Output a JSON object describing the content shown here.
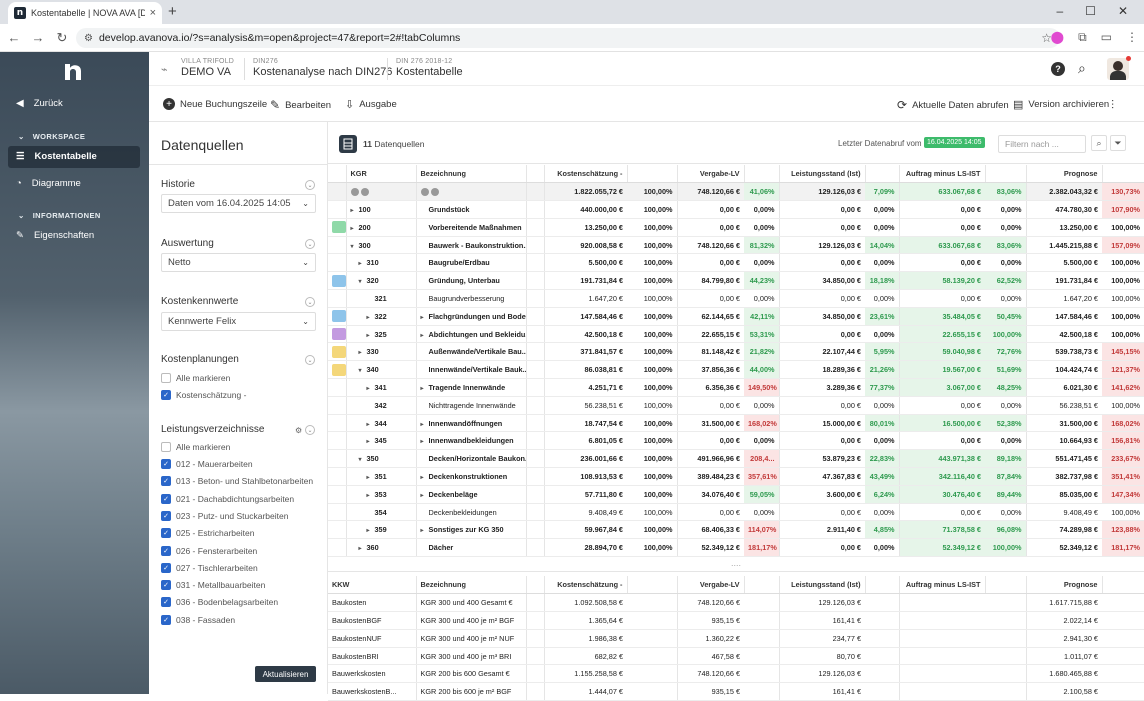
{
  "browser": {
    "tab_title": "Kostentabelle | NOVA AVA [DE",
    "url": "develop.avanova.io/?s=analysis&m=open&project=47&report=2#!tabColumns"
  },
  "sidebar": {
    "back": "Zurück",
    "section_workspace": "WORKSPACE",
    "item_kostentabelle": "Kostentabelle",
    "item_diagramme": "Diagramme",
    "section_info": "INFORMATIONEN",
    "item_eigenschaften": "Eigenschaften"
  },
  "header": {
    "project_small": "VILLA TRIFOLD",
    "project": "DEMO VA",
    "analysis_small": "DIN276",
    "analysis": "Kostenanalyse nach DIN276",
    "report_small": "DIN 276 2018-12",
    "report": "Kostentabelle"
  },
  "toolbar": {
    "new_entry": "Neue Buchungszeile",
    "edit": "Bearbeiten",
    "output": "Ausgabe",
    "refresh": "Aktuelle Daten abrufen",
    "archive": "Version archivieren"
  },
  "left_panel": {
    "title": "Datenquellen",
    "historie_label": "Historie",
    "historie_value": "Daten vom 16.04.2025 14:05",
    "auswertung_label": "Auswertung",
    "auswertung_value": "Netto",
    "kennwerte_label": "Kostenkennwerte",
    "kennwerte_value": "Kennwerte Felix",
    "planungen_label": "Kostenplanungen",
    "alle_markieren": "Alle markieren",
    "kostenschaetzung": "Kostenschätzung -",
    "lv_label": "Leistungsverzeichnisse",
    "lv_alle": "Alle markieren",
    "lv_items": [
      "012 - Mauerarbeiten",
      "013 - Beton- und Stahlbetonarbeiten",
      "021 - Dachabdichtungsarbeiten",
      "023 - Putz- und Stuckarbeiten",
      "025 - Estricharbeiten",
      "026 - Fensterarbeiten",
      "027 - Tischlerarbeiten",
      "031 - Metallbauarbeiten",
      "036 - Bodenbelagsarbeiten",
      "038 - Fassaden"
    ],
    "update_button": "Aktualisieren"
  },
  "main": {
    "ds_count": "11",
    "ds_label": "Datenquellen",
    "abruf_label": "Letzter Datenabruf vom",
    "abruf_date": "16.04.2025 14:05",
    "filter_placeholder": "Filtern nach ...",
    "more": "....",
    "columns": [
      "KGR",
      "Bezeichnung",
      "Kostenschätzung -",
      "Vergabe-LV",
      "Leistungsstand (Ist)",
      "Auftrag minus LS-IST",
      "Prognose"
    ],
    "rows": [
      {
        "sw": "",
        "ind": 0,
        "tw": "",
        "kgr": "",
        "bez": "",
        "ks": "1.822.055,72 €",
        "ksp": "100,00%",
        "vg": "748.120,66 €",
        "vgp": "41,06%",
        "vgc": "g",
        "ls": "129.126,03 €",
        "lsp": "7,09%",
        "lsc": "g",
        "am": "633.067,68 €",
        "amc": "g",
        "amp": "83,06%",
        "ampc": "g",
        "pr": "2.382.043,32 €",
        "prp": "130,73%",
        "prc": "p",
        "total": true
      },
      {
        "sw": "",
        "ind": 0,
        "tw": "▸",
        "kgr": "100",
        "bez": "Grundstück",
        "ks": "440.000,00 €",
        "ksp": "100,00%",
        "vg": "0,00 €",
        "vgp": "0,00%",
        "vgc": "",
        "ls": "0,00 €",
        "lsp": "0,00%",
        "lsc": "",
        "am": "0,00 €",
        "amc": "",
        "amp": "0,00%",
        "ampc": "",
        "pr": "474.780,30 €",
        "prp": "107,90%",
        "prc": "p"
      },
      {
        "sw": "#8fd9a8",
        "ind": 0,
        "tw": "▸",
        "kgr": "200",
        "bez": "Vorbereitende Maßnahmen",
        "ks": "13.250,00 €",
        "ksp": "100,00%",
        "vg": "0,00 €",
        "vgp": "0,00%",
        "vgc": "",
        "ls": "0,00 €",
        "lsp": "0,00%",
        "lsc": "",
        "am": "0,00 €",
        "amc": "",
        "amp": "0,00%",
        "ampc": "",
        "pr": "13.250,00 €",
        "prp": "100,00%",
        "prc": ""
      },
      {
        "sw": "",
        "ind": 0,
        "tw": "▾",
        "kgr": "300",
        "bez": "Bauwerk - Baukonstruktion...",
        "ks": "920.008,58 €",
        "ksp": "100,00%",
        "vg": "748.120,66 €",
        "vgp": "81,32%",
        "vgc": "g",
        "ls": "129.126,03 €",
        "lsp": "14,04%",
        "lsc": "g",
        "am": "633.067,68 €",
        "amc": "g",
        "amp": "83,06%",
        "ampc": "g",
        "pr": "1.445.215,88 €",
        "prp": "157,09%",
        "prc": "p"
      },
      {
        "sw": "",
        "ind": 1,
        "tw": "▸",
        "kgr": "310",
        "bez": "Baugrube/Erdbau",
        "ks": "5.500,00 €",
        "ksp": "100,00%",
        "vg": "0,00 €",
        "vgp": "0,00%",
        "vgc": "",
        "ls": "0,00 €",
        "lsp": "0,00%",
        "lsc": "",
        "am": "0,00 €",
        "amc": "",
        "amp": "0,00%",
        "ampc": "",
        "pr": "5.500,00 €",
        "prp": "100,00%",
        "prc": ""
      },
      {
        "sw": "#8ec4ea",
        "ind": 1,
        "tw": "▾",
        "kgr": "320",
        "bez": "Gründung, Unterbau",
        "ks": "191.731,84 €",
        "ksp": "100,00%",
        "vg": "84.799,80 €",
        "vgp": "44,23%",
        "vgc": "g",
        "ls": "34.850,00 €",
        "lsp": "18,18%",
        "lsc": "g",
        "am": "58.139,20 €",
        "amc": "g",
        "amp": "62,52%",
        "ampc": "g",
        "pr": "191.731,84 €",
        "prp": "100,00%",
        "prc": ""
      },
      {
        "sw": "",
        "ind": 2,
        "tw": "",
        "kgr": "321",
        "bez": "Baugrundverbesserung",
        "ks": "1.647,20 €",
        "ksp": "100,00%",
        "vg": "0,00 €",
        "vgp": "0,00%",
        "vgc": "",
        "ls": "0,00 €",
        "lsp": "0,00%",
        "lsc": "",
        "am": "0,00 €",
        "amc": "",
        "amp": "0,00%",
        "ampc": "",
        "pr": "1.647,20 €",
        "prp": "100,00%",
        "prc": "",
        "light": true
      },
      {
        "sw": "#8ec4ea",
        "ind": 2,
        "tw": "▸",
        "kgr": "322",
        "bez": "Flachgründungen und Bode...",
        "ks": "147.584,46 €",
        "ksp": "100,00%",
        "vg": "62.144,65 €",
        "vgp": "42,11%",
        "vgc": "g",
        "ls": "34.850,00 €",
        "lsp": "23,61%",
        "lsc": "g",
        "am": "35.484,05 €",
        "amc": "g",
        "amp": "50,45%",
        "ampc": "g",
        "pr": "147.584,46 €",
        "prp": "100,00%",
        "prc": ""
      },
      {
        "sw": "#c39ae0",
        "ind": 2,
        "tw": "▸",
        "kgr": "325",
        "bez": "Abdichtungen und Bekleidu...",
        "ks": "42.500,18 €",
        "ksp": "100,00%",
        "vg": "22.655,15 €",
        "vgp": "53,31%",
        "vgc": "g",
        "ls": "0,00 €",
        "lsp": "0,00%",
        "lsc": "",
        "am": "22.655,15 €",
        "amc": "g",
        "amp": "100,00%",
        "ampc": "g",
        "pr": "42.500,18 €",
        "prp": "100,00%",
        "prc": ""
      },
      {
        "sw": "#f4d77a",
        "ind": 1,
        "tw": "▸",
        "kgr": "330",
        "bez": "Außenwände/Vertikale Bau...",
        "ks": "371.841,57 €",
        "ksp": "100,00%",
        "vg": "81.148,42 €",
        "vgp": "21,82%",
        "vgc": "g",
        "ls": "22.107,44 €",
        "lsp": "5,95%",
        "lsc": "g",
        "am": "59.040,98 €",
        "amc": "g",
        "amp": "72,76%",
        "ampc": "g",
        "pr": "539.738,73 €",
        "prp": "145,15%",
        "prc": "p"
      },
      {
        "sw": "#f4d77a",
        "ind": 1,
        "tw": "▾",
        "kgr": "340",
        "bez": "Innenwände/Vertikale Bauk...",
        "ks": "86.038,81 €",
        "ksp": "100,00%",
        "vg": "37.856,36 €",
        "vgp": "44,00%",
        "vgc": "g",
        "ls": "18.289,36 €",
        "lsp": "21,26%",
        "lsc": "g",
        "am": "19.567,00 €",
        "amc": "g",
        "amp": "51,69%",
        "ampc": "g",
        "pr": "104.424,74 €",
        "prp": "121,37%",
        "prc": "p"
      },
      {
        "sw": "",
        "ind": 2,
        "tw": "▸",
        "kgr": "341",
        "bez": "Tragende Innenwände",
        "ks": "4.251,71 €",
        "ksp": "100,00%",
        "vg": "6.356,36 €",
        "vgp": "149,50%",
        "vgc": "p",
        "ls": "3.289,36 €",
        "lsp": "77,37%",
        "lsc": "g",
        "am": "3.067,00 €",
        "amc": "g",
        "amp": "48,25%",
        "ampc": "g",
        "pr": "6.021,30 €",
        "prp": "141,62%",
        "prc": "p"
      },
      {
        "sw": "",
        "ind": 2,
        "tw": "",
        "kgr": "342",
        "bez": "Nichttragende Innenwände",
        "ks": "56.238,51 €",
        "ksp": "100,00%",
        "vg": "0,00 €",
        "vgp": "0,00%",
        "vgc": "",
        "ls": "0,00 €",
        "lsp": "0,00%",
        "lsc": "",
        "am": "0,00 €",
        "amc": "",
        "amp": "0,00%",
        "ampc": "",
        "pr": "56.238,51 €",
        "prp": "100,00%",
        "prc": "",
        "light": true
      },
      {
        "sw": "",
        "ind": 2,
        "tw": "▸",
        "kgr": "344",
        "bez": "Innenwandöffnungen",
        "ks": "18.747,54 €",
        "ksp": "100,00%",
        "vg": "31.500,00 €",
        "vgp": "168,02%",
        "vgc": "p",
        "ls": "15.000,00 €",
        "lsp": "80,01%",
        "lsc": "g",
        "am": "16.500,00 €",
        "amc": "g",
        "amp": "52,38%",
        "ampc": "g",
        "pr": "31.500,00 €",
        "prp": "168,02%",
        "prc": "p"
      },
      {
        "sw": "",
        "ind": 2,
        "tw": "▸",
        "kgr": "345",
        "bez": "Innenwandbekleidungen",
        "ks": "6.801,05 €",
        "ksp": "100,00%",
        "vg": "0,00 €",
        "vgp": "0,00%",
        "vgc": "",
        "ls": "0,00 €",
        "lsp": "0,00%",
        "lsc": "",
        "am": "0,00 €",
        "amc": "",
        "amp": "0,00%",
        "ampc": "",
        "pr": "10.664,93 €",
        "prp": "156,81%",
        "prc": "p"
      },
      {
        "sw": "",
        "ind": 1,
        "tw": "▾",
        "kgr": "350",
        "bez": "Decken/Horizontale Baukon...",
        "ks": "236.001,66 €",
        "ksp": "100,00%",
        "vg": "491.966,96 €",
        "vgp": "208,4...",
        "vgc": "p",
        "ls": "53.879,23 €",
        "lsp": "22,83%",
        "lsc": "g",
        "am": "443.971,38 €",
        "amc": "g",
        "amp": "89,18%",
        "ampc": "g",
        "pr": "551.471,45 €",
        "prp": "233,67%",
        "prc": "p"
      },
      {
        "sw": "",
        "ind": 2,
        "tw": "▸",
        "kgr": "351",
        "bez": "Deckenkonstruktionen",
        "ks": "108.913,53 €",
        "ksp": "100,00%",
        "vg": "389.484,23 €",
        "vgp": "357,61%",
        "vgc": "p",
        "ls": "47.367,83 €",
        "lsp": "43,49%",
        "lsc": "g",
        "am": "342.116,40 €",
        "amc": "g",
        "amp": "87,84%",
        "ampc": "g",
        "pr": "382.737,98 €",
        "prp": "351,41%",
        "prc": "p"
      },
      {
        "sw": "",
        "ind": 2,
        "tw": "▸",
        "kgr": "353",
        "bez": "Deckenbeläge",
        "ks": "57.711,80 €",
        "ksp": "100,00%",
        "vg": "34.076,40 €",
        "vgp": "59,05%",
        "vgc": "g",
        "ls": "3.600,00 €",
        "lsp": "6,24%",
        "lsc": "g",
        "am": "30.476,40 €",
        "amc": "g",
        "amp": "89,44%",
        "ampc": "g",
        "pr": "85.035,00 €",
        "prp": "147,34%",
        "prc": "p"
      },
      {
        "sw": "",
        "ind": 2,
        "tw": "",
        "kgr": "354",
        "bez": "Deckenbekleidungen",
        "ks": "9.408,49 €",
        "ksp": "100,00%",
        "vg": "0,00 €",
        "vgp": "0,00%",
        "vgc": "",
        "ls": "0,00 €",
        "lsp": "0,00%",
        "lsc": "",
        "am": "0,00 €",
        "amc": "",
        "amp": "0,00%",
        "ampc": "",
        "pr": "9.408,49 €",
        "prp": "100,00%",
        "prc": "",
        "light": true
      },
      {
        "sw": "",
        "ind": 2,
        "tw": "▸",
        "kgr": "359",
        "bez": "Sonstiges zur KG 350",
        "ks": "59.967,84 €",
        "ksp": "100,00%",
        "vg": "68.406,33 €",
        "vgp": "114,07%",
        "vgc": "p",
        "ls": "2.911,40 €",
        "lsp": "4,85%",
        "lsc": "g",
        "am": "71.378,58 €",
        "amc": "g",
        "amp": "96,08%",
        "ampc": "g",
        "pr": "74.289,98 €",
        "prp": "123,88%",
        "prc": "p"
      },
      {
        "sw": "",
        "ind": 1,
        "tw": "▸",
        "kgr": "360",
        "bez": "Dächer",
        "ks": "28.894,70 €",
        "ksp": "100,00%",
        "vg": "52.349,12 €",
        "vgp": "181,17%",
        "vgc": "p",
        "ls": "0,00 €",
        "lsp": "0,00%",
        "lsc": "",
        "am": "52.349,12 €",
        "amc": "g",
        "amp": "100,00%",
        "ampc": "g",
        "pr": "52.349,12 €",
        "prp": "181,17%",
        "prc": "p"
      }
    ],
    "kkw_columns": [
      "KKW",
      "Bezeichnung",
      "Kostenschätzung -",
      "Vergabe-LV",
      "Leistungsstand (Ist)",
      "Auftrag minus LS-IST",
      "Prognose"
    ],
    "kkw_rows": [
      {
        "kkw": "Baukosten",
        "bez": "KGR 300 und 400 Gesamt €",
        "ks": "1.092.508,58 €",
        "vg": "748.120,66 €",
        "ls": "129.126,03 €",
        "pr": "1.617.715,88 €"
      },
      {
        "kkw": "BaukostenBGF",
        "bez": "KGR 300 und 400 je m² BGF",
        "ks": "1.365,64 €",
        "vg": "935,15 €",
        "ls": "161,41 €",
        "pr": "2.022,14 €"
      },
      {
        "kkw": "BaukostenNUF",
        "bez": "KGR 300 und 400 je m² NUF",
        "ks": "1.986,38 €",
        "vg": "1.360,22 €",
        "ls": "234,77 €",
        "pr": "2.941,30 €"
      },
      {
        "kkw": "BaukostenBRI",
        "bez": "KGR 300 und 400 je m³ BRI",
        "ks": "682,82 €",
        "vg": "467,58 €",
        "ls": "80,70 €",
        "pr": "1.011,07 €"
      },
      {
        "kkw": "Bauwerkskosten",
        "bez": "KGR 200 bis 600 Gesamt €",
        "ks": "1.155.258,58 €",
        "vg": "748.120,66 €",
        "ls": "129.126,03 €",
        "pr": "1.680.465,88 €"
      },
      {
        "kkw": "BauwerkskostenB...",
        "bez": "KGR 200 bis 600 je m² BGF",
        "ks": "1.444,07 €",
        "vg": "935,15 €",
        "ls": "161,41 €",
        "pr": "2.100,58 €"
      }
    ]
  }
}
